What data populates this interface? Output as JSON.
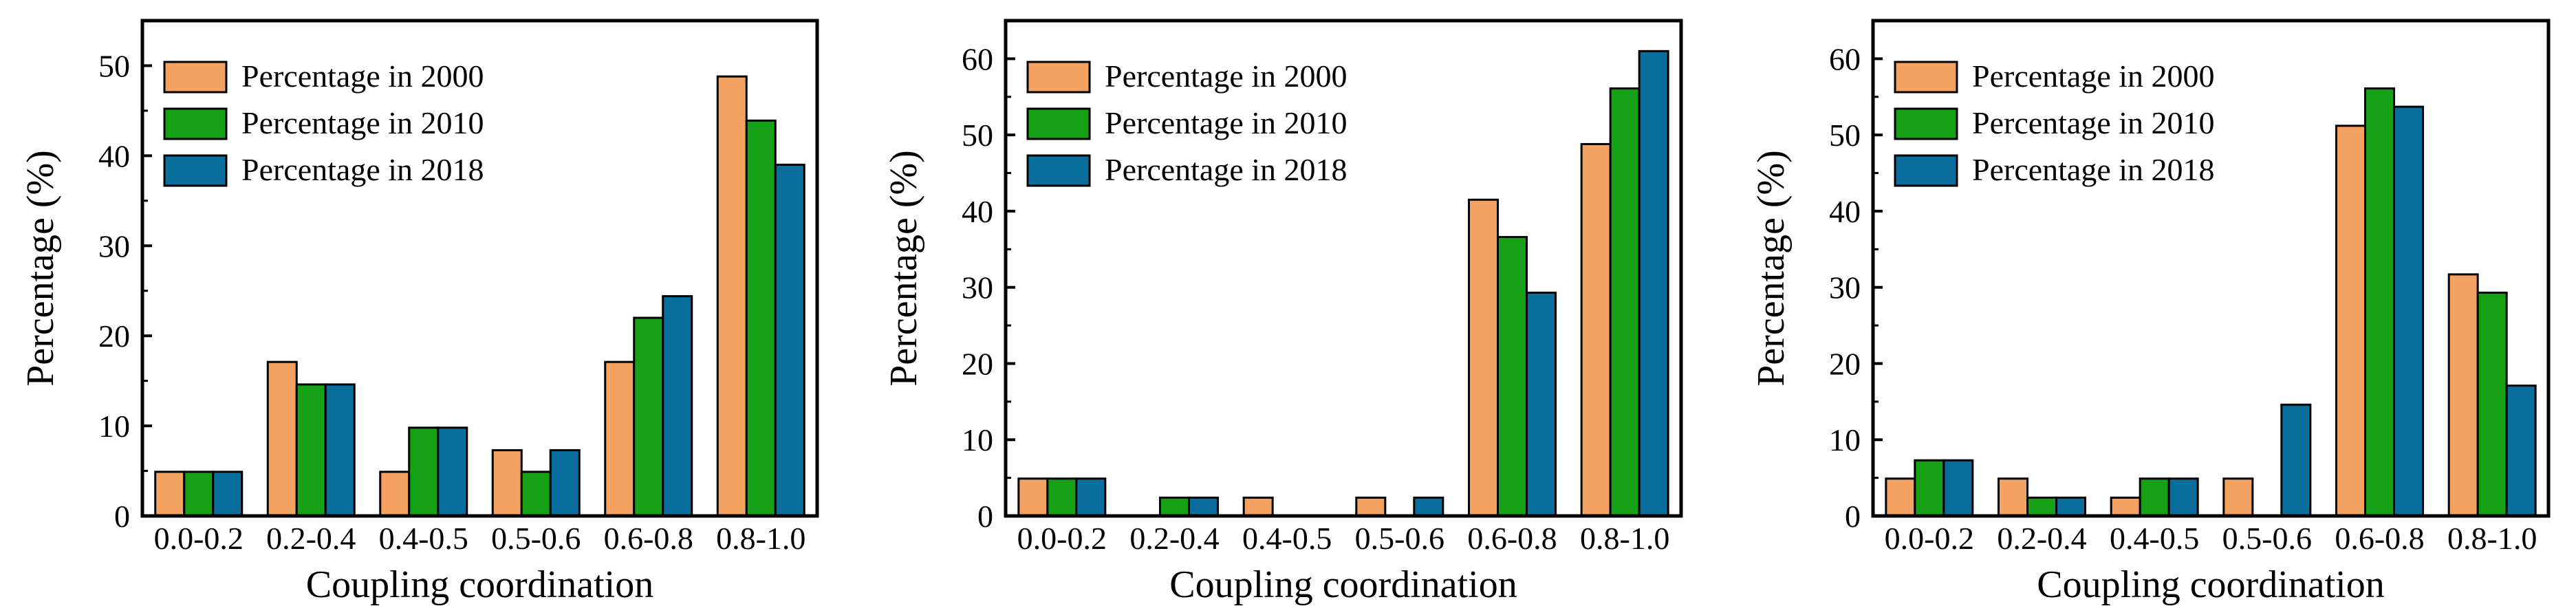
{
  "colors": {
    "s2000": "#F4A261",
    "s2010": "#16A016",
    "s2018": "#0A6E9C"
  },
  "chart_data": [
    {
      "type": "bar",
      "categories": [
        "0.0-0.2",
        "0.2-0.4",
        "0.4-0.5",
        "0.5-0.6",
        "0.6-0.8",
        "0.8-1.0"
      ],
      "series": [
        {
          "name": "Percentage in 2000",
          "values": [
            4.9,
            17.1,
            4.9,
            7.3,
            17.1,
            48.8
          ]
        },
        {
          "name": "Percentage in 2010",
          "values": [
            4.9,
            14.6,
            9.8,
            4.9,
            22.0,
            43.9
          ]
        },
        {
          "name": "Percentage in 2018",
          "values": [
            4.9,
            14.6,
            9.8,
            7.3,
            24.4,
            39.0
          ]
        }
      ],
      "xlabel": "Coupling coordination",
      "ylabel": "Percentage (%)",
      "ylim": [
        0,
        55
      ],
      "yticks": [
        0,
        10,
        20,
        30,
        40,
        50
      ],
      "legend": "top-left",
      "grid": false
    },
    {
      "type": "bar",
      "categories": [
        "0.0-0.2",
        "0.2-0.4",
        "0.4-0.5",
        "0.5-0.6",
        "0.6-0.8",
        "0.8-1.0"
      ],
      "series": [
        {
          "name": "Percentage in 2000",
          "values": [
            4.9,
            0,
            2.4,
            2.4,
            41.5,
            48.8
          ]
        },
        {
          "name": "Percentage in 2010",
          "values": [
            4.9,
            2.4,
            0,
            0,
            36.6,
            56.1
          ]
        },
        {
          "name": "Percentage in 2018",
          "values": [
            4.9,
            2.4,
            0,
            2.4,
            29.3,
            61.0
          ]
        }
      ],
      "xlabel": "Coupling coordination",
      "ylabel": "Percentage (%)",
      "ylim": [
        0,
        65
      ],
      "yticks": [
        0,
        10,
        20,
        30,
        40,
        50,
        60
      ],
      "legend": "top-left",
      "grid": false
    },
    {
      "type": "bar",
      "categories": [
        "0.0-0.2",
        "0.2-0.4",
        "0.4-0.5",
        "0.5-0.6",
        "0.6-0.8",
        "0.8-1.0"
      ],
      "series": [
        {
          "name": "Percentage in 2000",
          "values": [
            4.9,
            4.9,
            2.4,
            4.9,
            51.2,
            31.7
          ]
        },
        {
          "name": "Percentage in 2010",
          "values": [
            7.3,
            2.4,
            4.9,
            0,
            56.1,
            29.3
          ]
        },
        {
          "name": "Percentage in 2018",
          "values": [
            7.3,
            2.4,
            4.9,
            14.6,
            53.7,
            17.1
          ]
        }
      ],
      "xlabel": "Coupling coordination",
      "ylabel": "Percentage (%)",
      "ylim": [
        0,
        65
      ],
      "yticks": [
        0,
        10,
        20,
        30,
        40,
        50,
        60
      ],
      "legend": "top-left",
      "grid": false
    }
  ]
}
